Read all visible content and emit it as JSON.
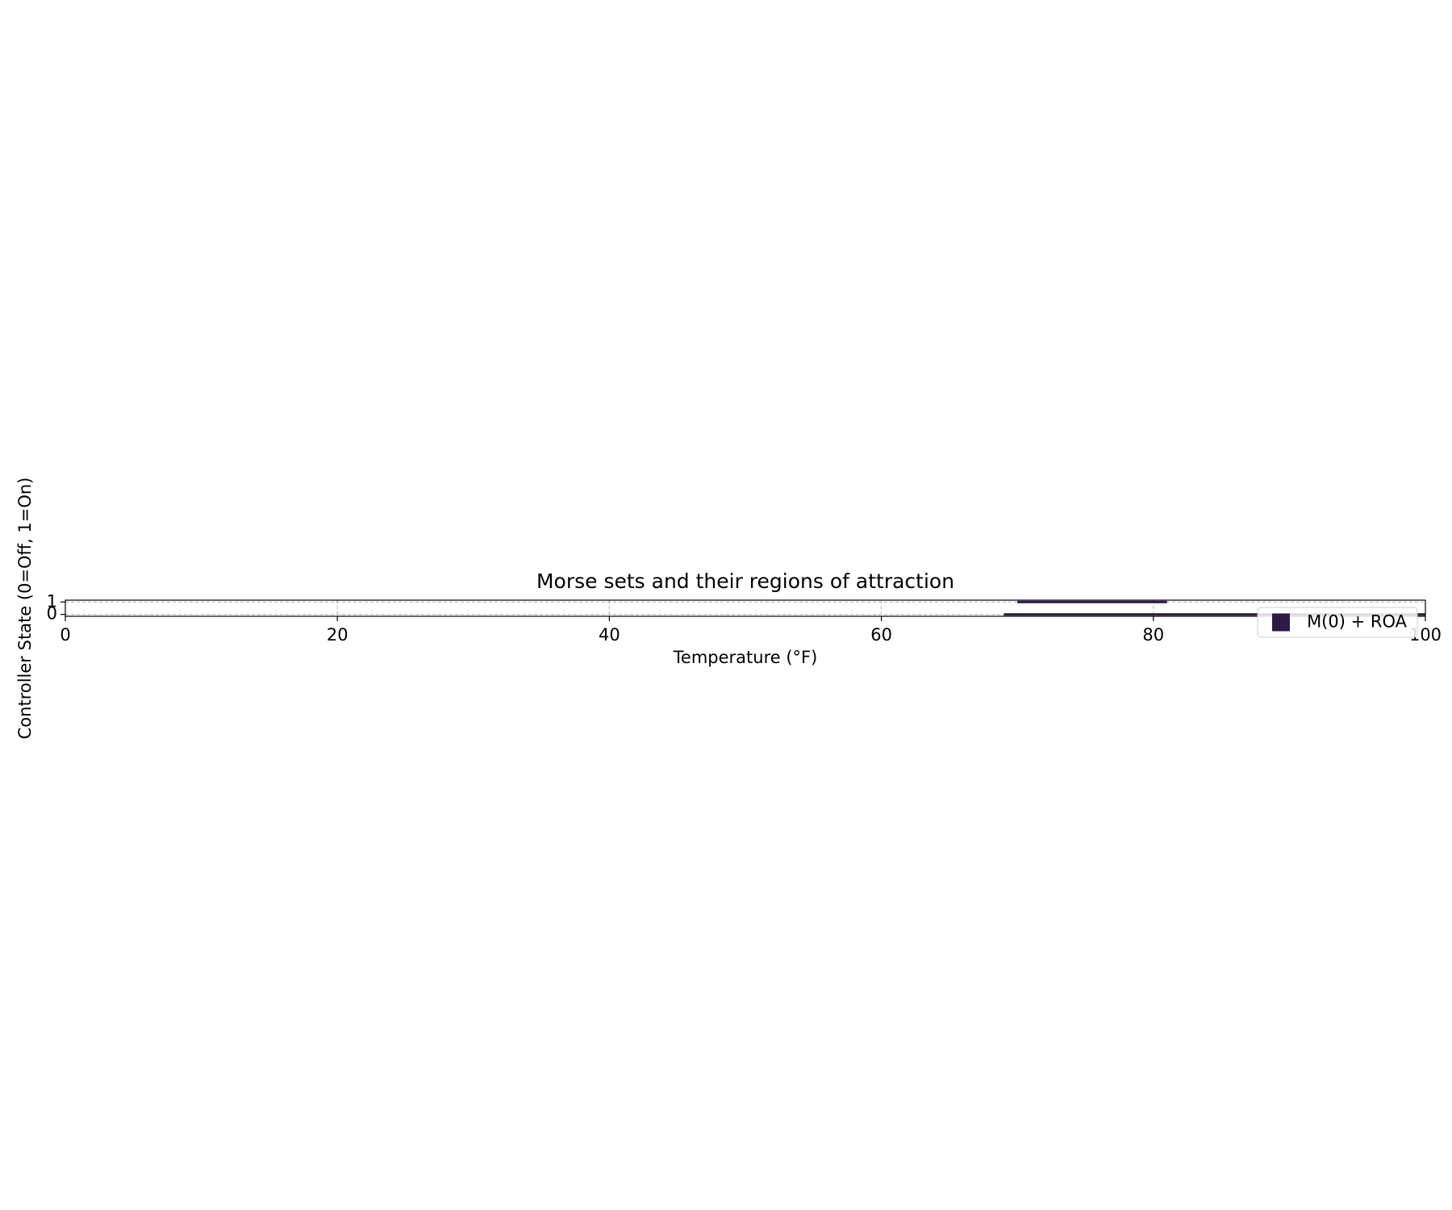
{
  "chart_data": {
    "type": "region",
    "title": "Morse sets and their regions of attraction",
    "x_label": "Temperature (°F)",
    "y_label": "Controller State (0=Off, 1=On)",
    "xlim": [
      0,
      100
    ],
    "xticks": [
      0,
      20,
      40,
      60,
      80,
      100
    ],
    "ylim": [
      -0.15,
      1.15
    ],
    "yticks": [
      0,
      1
    ],
    "grid": true,
    "legend": "lower right",
    "series": [
      {
        "name": "M(0) + ROA",
        "color": "#2e1a47",
        "segments": [
          {
            "x": [
              70,
              81
            ],
            "y": 1
          },
          {
            "x": [
              69,
              100
            ],
            "y": 0
          }
        ]
      }
    ]
  }
}
